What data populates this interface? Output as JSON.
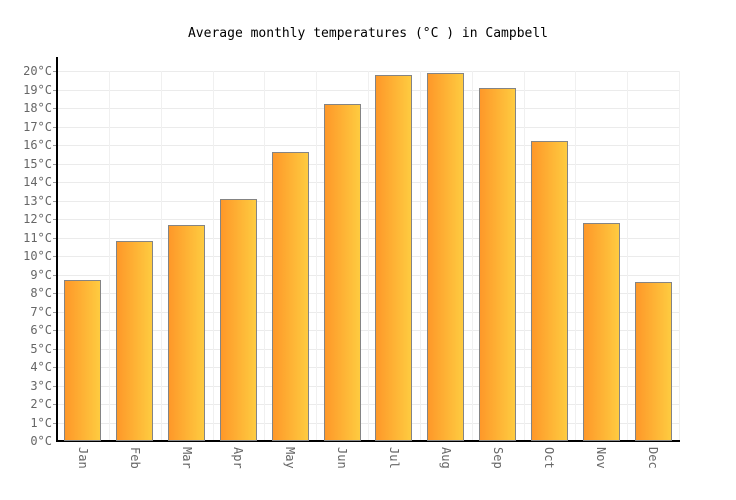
{
  "chart_data": {
    "type": "bar",
    "title": "Average monthly temperatures (°C ) in Campbell",
    "categories": [
      "Jan",
      "Feb",
      "Mar",
      "Apr",
      "May",
      "Jun",
      "Jul",
      "Aug",
      "Sep",
      "Oct",
      "Nov",
      "Dec"
    ],
    "values": [
      8.7,
      10.8,
      11.7,
      13.1,
      15.6,
      18.2,
      19.8,
      19.9,
      19.1,
      16.2,
      11.8,
      8.6
    ],
    "unit": "°C",
    "xlabel": "",
    "ylabel": "",
    "ylim": [
      0,
      20
    ],
    "ytick_step": 1,
    "ytick_suffix": "°C",
    "grid": true,
    "legend": "none",
    "colors": {
      "bar_gradient_left": "#fe9829",
      "bar_gradient_right": "#fecb40",
      "bar_border": "#848484",
      "axis": "#000000",
      "gridline_horizontal": "#ebebeb",
      "gridline_vertical": "#f0f0f0",
      "tick": "#999999",
      "tick_label": "#666666",
      "title": "#000000",
      "background": "#ffffff"
    }
  }
}
